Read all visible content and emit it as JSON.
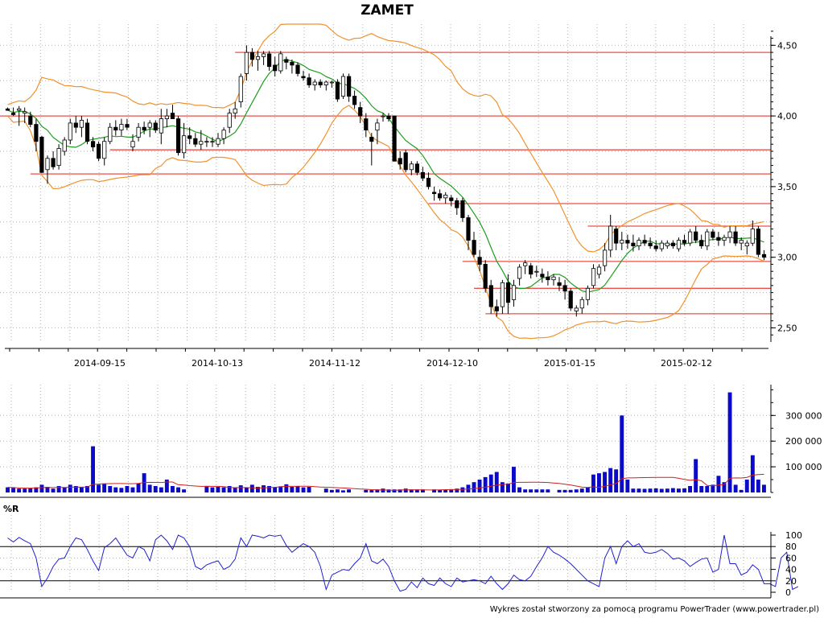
{
  "title": "ZAMET",
  "credit": "Wykres został stworzony za pomocą programu PowerTrader (www.powertrader.pl)",
  "colors": {
    "grid": "#b0b0b0",
    "candle": "#000000",
    "ma": "#1e9e1e",
    "bollinger": "#f0922e",
    "support": "#e8504a",
    "volume": "#0a0ac8",
    "volume_ma": "#d02020",
    "wr": "#2020d0",
    "level": "#000000"
  },
  "chart_data": [
    {
      "type": "candlestick",
      "name": "price",
      "x_ticks": [
        "2014-09-15",
        "2014-10-13",
        "2014-11-12",
        "2014-12-10",
        "2015-01-15",
        "2015-02-12"
      ],
      "y_ticks": [
        "4,50",
        "4,00",
        "3,50",
        "3,00",
        "2,50"
      ],
      "ylim": [
        2.4,
        4.65
      ],
      "support_lines": [
        {
          "y": 4.45,
          "from": 2014.0,
          "to": 2015.0
        },
        {
          "y": 4.0,
          "from": 0,
          "to": 1
        },
        {
          "y": 3.76,
          "from": 0,
          "to": 1
        },
        {
          "y": 3.59,
          "from": 0,
          "to": 1
        },
        {
          "y": 3.38,
          "from": 0,
          "to": 1
        },
        {
          "y": 3.22,
          "from": 0,
          "to": 1
        },
        {
          "y": 2.97,
          "from": 0,
          "to": 1
        },
        {
          "y": 2.78,
          "from": 0,
          "to": 1
        },
        {
          "y": 2.6,
          "from": 0,
          "to": 1
        }
      ],
      "candles": [
        [
          4.05,
          4.06,
          4.04,
          4.04
        ],
        [
          4.02,
          4.06,
          4.0,
          4.01
        ],
        [
          4.04,
          4.07,
          3.93,
          4.05
        ],
        [
          4.02,
          4.06,
          3.95,
          4.03
        ],
        [
          4.0,
          4.03,
          3.92,
          3.94
        ],
        [
          3.94,
          3.98,
          3.75,
          3.82
        ],
        [
          3.85,
          3.86,
          3.6,
          3.6
        ],
        [
          3.62,
          3.72,
          3.52,
          3.7
        ],
        [
          3.7,
          3.75,
          3.62,
          3.64
        ],
        [
          3.65,
          3.8,
          3.62,
          3.77
        ],
        [
          3.75,
          3.85,
          3.72,
          3.83
        ],
        [
          3.83,
          3.98,
          3.8,
          3.95
        ],
        [
          3.95,
          4.0,
          3.88,
          3.92
        ],
        [
          3.92,
          4.0,
          3.85,
          3.97
        ],
        [
          3.95,
          3.98,
          3.8,
          3.82
        ],
        [
          3.82,
          3.85,
          3.75,
          3.78
        ],
        [
          3.8,
          3.82,
          3.68,
          3.7
        ],
        [
          3.7,
          3.85,
          3.65,
          3.82
        ],
        [
          3.82,
          3.95,
          3.8,
          3.92
        ],
        [
          3.92,
          3.97,
          3.86,
          3.9
        ],
        [
          3.9,
          3.98,
          3.86,
          3.94
        ],
        [
          3.94,
          3.98,
          3.9,
          3.92
        ],
        [
          3.78,
          3.87,
          3.75,
          3.82
        ],
        [
          3.85,
          3.95,
          3.82,
          3.92
        ],
        [
          3.92,
          3.96,
          3.87,
          3.9
        ],
        [
          3.92,
          3.97,
          3.85,
          3.95
        ],
        [
          3.95,
          3.97,
          3.88,
          3.9
        ],
        [
          3.88,
          4.05,
          3.8,
          3.98
        ],
        [
          3.98,
          4.05,
          3.92,
          4.0
        ],
        [
          4.02,
          4.08,
          3.98,
          3.98
        ],
        [
          3.98,
          4.0,
          3.72,
          3.74
        ],
        [
          3.74,
          3.95,
          3.7,
          3.86
        ],
        [
          3.86,
          3.92,
          3.8,
          3.84
        ],
        [
          3.84,
          3.88,
          3.78,
          3.8
        ],
        [
          3.8,
          3.9,
          3.76,
          3.82
        ],
        [
          3.82,
          3.85,
          3.78,
          3.82
        ],
        [
          3.82,
          3.85,
          3.78,
          3.82
        ],
        [
          3.8,
          3.88,
          3.78,
          3.84
        ],
        [
          3.84,
          3.92,
          3.8,
          3.9
        ],
        [
          3.92,
          4.05,
          3.88,
          4.02
        ],
        [
          4.02,
          4.1,
          3.98,
          4.05
        ],
        [
          4.1,
          4.3,
          4.06,
          4.28
        ],
        [
          4.3,
          4.5,
          4.25,
          4.45
        ],
        [
          4.45,
          4.48,
          4.35,
          4.4
        ],
        [
          4.4,
          4.46,
          4.32,
          4.42
        ],
        [
          4.42,
          4.46,
          4.36,
          4.44
        ],
        [
          4.44,
          4.46,
          4.32,
          4.35
        ],
        [
          4.36,
          4.42,
          4.28,
          4.32
        ],
        [
          4.32,
          4.46,
          4.3,
          4.44
        ],
        [
          4.4,
          4.42,
          4.33,
          4.38
        ],
        [
          4.38,
          4.4,
          4.3,
          4.36
        ],
        [
          4.36,
          4.38,
          4.28,
          4.3
        ],
        [
          4.28,
          4.32,
          4.25,
          4.27
        ],
        [
          4.27,
          4.3,
          4.2,
          4.22
        ],
        [
          4.22,
          4.26,
          4.18,
          4.24
        ],
        [
          4.24,
          4.26,
          4.2,
          4.22
        ],
        [
          4.22,
          4.25,
          4.18,
          4.24
        ],
        [
          4.24,
          4.25,
          4.2,
          4.24
        ],
        [
          4.24,
          4.26,
          4.1,
          4.12
        ],
        [
          4.14,
          4.3,
          4.12,
          4.28
        ],
        [
          4.28,
          4.3,
          4.1,
          4.14
        ],
        [
          4.14,
          4.18,
          4.05,
          4.08
        ],
        [
          4.06,
          4.1,
          3.95,
          4.0
        ],
        [
          3.98,
          4.02,
          3.85,
          3.9
        ],
        [
          3.85,
          3.88,
          3.65,
          3.82
        ],
        [
          3.9,
          3.98,
          3.8,
          3.95
        ],
        [
          4.0,
          4.02,
          3.96,
          4.0
        ],
        [
          4.0,
          4.02,
          3.96,
          3.98
        ],
        [
          4.0,
          4.0,
          3.7,
          3.68
        ],
        [
          3.7,
          3.75,
          3.62,
          3.66
        ],
        [
          3.74,
          3.76,
          3.6,
          3.62
        ],
        [
          3.62,
          3.68,
          3.58,
          3.66
        ],
        [
          3.66,
          3.68,
          3.58,
          3.6
        ],
        [
          3.6,
          3.64,
          3.54,
          3.56
        ],
        [
          3.56,
          3.6,
          3.48,
          3.5
        ],
        [
          3.46,
          3.5,
          3.4,
          3.45
        ],
        [
          3.45,
          3.48,
          3.4,
          3.42
        ],
        [
          3.42,
          3.46,
          3.38,
          3.44
        ],
        [
          3.42,
          3.44,
          3.36,
          3.4
        ],
        [
          3.4,
          3.42,
          3.3,
          3.35
        ],
        [
          3.4,
          3.42,
          3.25,
          3.28
        ],
        [
          3.28,
          3.3,
          3.05,
          3.12
        ],
        [
          3.12,
          3.18,
          3.0,
          3.02
        ],
        [
          3.0,
          3.05,
          2.9,
          2.95
        ],
        [
          2.95,
          2.98,
          2.75,
          2.78
        ],
        [
          2.8,
          2.84,
          2.6,
          2.65
        ],
        [
          2.65,
          2.7,
          2.58,
          2.62
        ],
        [
          2.65,
          2.84,
          2.6,
          2.82
        ],
        [
          2.82,
          2.88,
          2.6,
          2.68
        ],
        [
          2.7,
          2.84,
          2.65,
          2.8
        ],
        [
          2.85,
          2.95,
          2.8,
          2.93
        ],
        [
          2.94,
          2.98,
          2.88,
          2.96
        ],
        [
          2.94,
          2.96,
          2.85,
          2.88
        ],
        [
          2.9,
          2.94,
          2.86,
          2.9
        ],
        [
          2.88,
          2.92,
          2.82,
          2.86
        ],
        [
          2.86,
          2.9,
          2.8,
          2.84
        ],
        [
          2.84,
          2.88,
          2.8,
          2.86
        ],
        [
          2.82,
          2.86,
          2.76,
          2.8
        ],
        [
          2.8,
          2.84,
          2.7,
          2.76
        ],
        [
          2.76,
          2.78,
          2.62,
          2.64
        ],
        [
          2.62,
          2.66,
          2.58,
          2.64
        ],
        [
          2.64,
          2.72,
          2.6,
          2.7
        ],
        [
          2.7,
          2.8,
          2.66,
          2.78
        ],
        [
          2.8,
          2.95,
          2.78,
          2.92
        ],
        [
          2.88,
          2.95,
          2.85,
          2.93
        ],
        [
          2.94,
          3.1,
          2.9,
          3.05
        ],
        [
          3.05,
          3.3,
          3.0,
          3.22
        ],
        [
          3.2,
          3.22,
          3.05,
          3.1
        ],
        [
          3.1,
          3.18,
          3.05,
          3.12
        ],
        [
          3.12,
          3.16,
          3.06,
          3.1
        ],
        [
          3.1,
          3.16,
          3.04,
          3.08
        ],
        [
          3.08,
          3.14,
          3.05,
          3.12
        ],
        [
          3.12,
          3.16,
          3.08,
          3.1
        ],
        [
          3.1,
          3.14,
          3.06,
          3.08
        ],
        [
          3.08,
          3.12,
          3.04,
          3.06
        ],
        [
          3.06,
          3.12,
          3.04,
          3.1
        ],
        [
          3.08,
          3.12,
          3.06,
          3.1
        ],
        [
          3.1,
          3.12,
          3.06,
          3.08
        ],
        [
          3.06,
          3.14,
          3.04,
          3.12
        ],
        [
          3.12,
          3.16,
          3.08,
          3.1
        ],
        [
          3.1,
          3.2,
          3.08,
          3.18
        ],
        [
          3.18,
          3.22,
          3.1,
          3.12
        ],
        [
          3.12,
          3.16,
          3.06,
          3.08
        ],
        [
          3.08,
          3.2,
          3.05,
          3.18
        ],
        [
          3.18,
          3.2,
          3.12,
          3.14
        ],
        [
          3.14,
          3.18,
          3.08,
          3.12
        ],
        [
          3.12,
          3.16,
          3.08,
          3.14
        ],
        [
          3.14,
          3.22,
          3.1,
          3.18
        ],
        [
          3.18,
          3.22,
          3.08,
          3.1
        ],
        [
          3.1,
          3.14,
          3.05,
          3.12
        ],
        [
          3.08,
          3.12,
          3.02,
          3.1
        ],
        [
          3.1,
          3.26,
          3.08,
          3.2
        ],
        [
          3.2,
          3.22,
          3.0,
          3.02
        ],
        [
          3.02,
          3.05,
          2.98,
          3.0
        ]
      ]
    },
    {
      "type": "bar",
      "name": "volume",
      "y_ticks": [
        "300 000",
        "200 000",
        "100 000"
      ],
      "ylim": [
        0,
        420000
      ],
      "values": [
        20000,
        18000,
        15000,
        15000,
        16000,
        20000,
        30000,
        22000,
        15000,
        25000,
        20000,
        30000,
        25000,
        20000,
        25000,
        180000,
        30000,
        35000,
        25000,
        20000,
        18000,
        25000,
        20000,
        35000,
        75000,
        30000,
        25000,
        20000,
        50000,
        25000,
        20000,
        12000,
        0,
        0,
        0,
        25000,
        20000,
        22000,
        20000,
        25000,
        20000,
        28000,
        20000,
        30000,
        22000,
        28000,
        25000,
        20000,
        24000,
        32000,
        22000,
        24000,
        20000,
        22000,
        0,
        0,
        15000,
        10000,
        12000,
        8000,
        12000,
        0,
        0,
        10000,
        9000,
        12000,
        15000,
        12000,
        12000,
        12000,
        15000,
        12000,
        12000,
        12000,
        0,
        12000,
        11000,
        10000,
        12000,
        15000,
        20000,
        30000,
        40000,
        50000,
        60000,
        70000,
        80000,
        40000,
        35000,
        100000,
        20000,
        12000,
        12000,
        12000,
        12000,
        12000,
        0,
        10000,
        10000,
        10000,
        12000,
        15000,
        20000,
        70000,
        75000,
        80000,
        95000,
        90000,
        300000,
        50000,
        15000,
        15000,
        14000,
        15000,
        16000,
        14000,
        15000,
        17000,
        15000,
        16000,
        25000,
        130000,
        25000,
        25000,
        30000,
        65000,
        40000,
        390000,
        30000,
        10000,
        50000,
        145000,
        50000,
        30000
      ],
      "ma_line": true
    },
    {
      "type": "line",
      "name": "%R",
      "label": "%R",
      "y_ticks": [
        "100",
        "80",
        "60",
        "40",
        "20",
        "0"
      ],
      "ylim": [
        0,
        100
      ],
      "levels": [
        80,
        20
      ],
      "values": [
        95,
        88,
        96,
        90,
        85,
        60,
        10,
        25,
        45,
        58,
        60,
        80,
        95,
        92,
        75,
        55,
        38,
        78,
        85,
        95,
        80,
        65,
        60,
        80,
        75,
        55,
        92,
        100,
        90,
        75,
        100,
        95,
        80,
        45,
        40,
        48,
        52,
        55,
        40,
        45,
        58,
        95,
        80,
        100,
        98,
        95,
        100,
        98,
        100,
        82,
        70,
        78,
        85,
        80,
        70,
        45,
        5,
        30,
        35,
        40,
        38,
        50,
        60,
        85,
        55,
        50,
        58,
        45,
        20,
        2,
        5,
        18,
        8,
        25,
        15,
        12,
        25,
        15,
        10,
        25,
        18,
        20,
        22,
        20,
        15,
        28,
        15,
        5,
        15,
        30,
        22,
        20,
        28,
        45,
        60,
        80,
        70,
        65,
        58,
        50,
        40,
        30,
        20,
        15,
        10,
        60,
        80,
        50,
        80,
        90,
        80,
        85,
        70,
        68,
        70,
        75,
        68,
        58,
        60,
        55,
        45,
        52,
        58,
        60,
        35,
        40,
        100,
        50,
        50,
        30,
        35,
        48,
        40,
        15,
        15,
        10,
        60,
        70,
        5,
        10
      ],
      "x_count": 140
    }
  ]
}
